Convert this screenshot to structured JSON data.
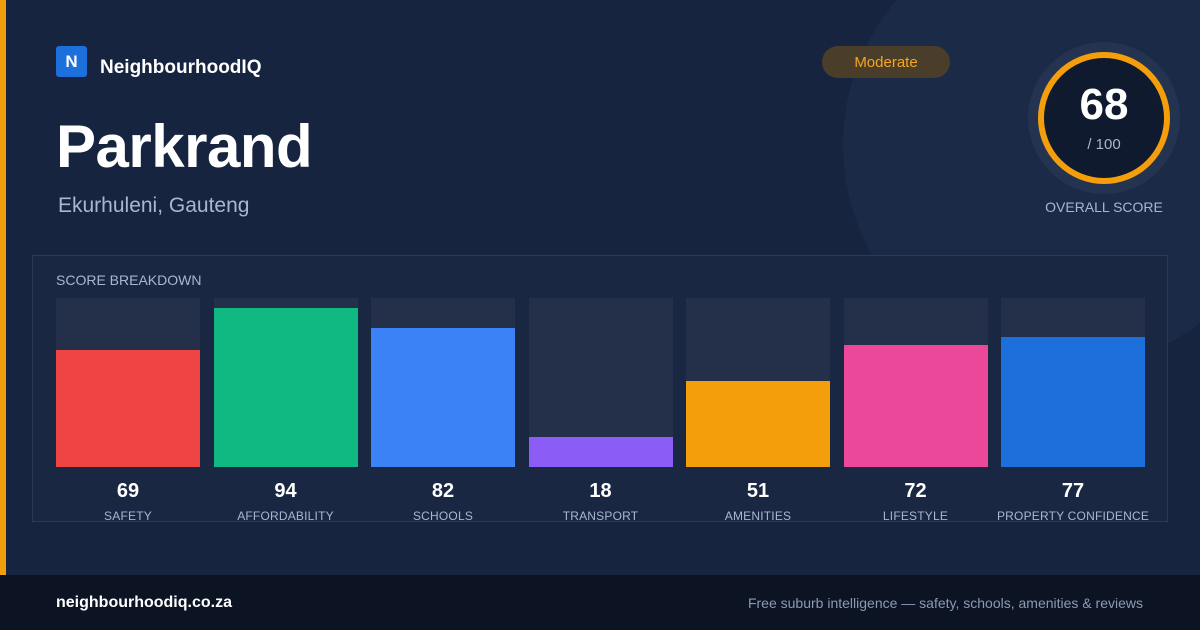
{
  "brand": {
    "logo_letter": "N",
    "name": "NeighbourhoodIQ"
  },
  "suburb": {
    "name": "Parkrand",
    "location": "Ekurhuleni, Gauteng"
  },
  "rating_badge": "Moderate",
  "overall": {
    "score": "68",
    "max": "/ 100",
    "label": "OVERALL SCORE",
    "accent_color": "#f59e0b"
  },
  "breakdown": {
    "title": "SCORE BREAKDOWN",
    "categories": [
      {
        "label": "SAFETY",
        "value": 69,
        "color": "#ef4444"
      },
      {
        "label": "AFFORDABILITY",
        "value": 94,
        "color": "#10b981"
      },
      {
        "label": "SCHOOLS",
        "value": 82,
        "color": "#3b82f6"
      },
      {
        "label": "TRANSPORT",
        "value": 18,
        "color": "#8b5cf6"
      },
      {
        "label": "AMENITIES",
        "value": 51,
        "color": "#f59e0b"
      },
      {
        "label": "LIFESTYLE",
        "value": 72,
        "color": "#ec4899"
      },
      {
        "label": "PROPERTY CONFIDENCE",
        "value": 77,
        "color": "#1d6fdc"
      }
    ]
  },
  "footer": {
    "url": "neighbourhoodiq.co.za",
    "tagline": "Free suburb intelligence — safety, schools, amenities & reviews"
  }
}
